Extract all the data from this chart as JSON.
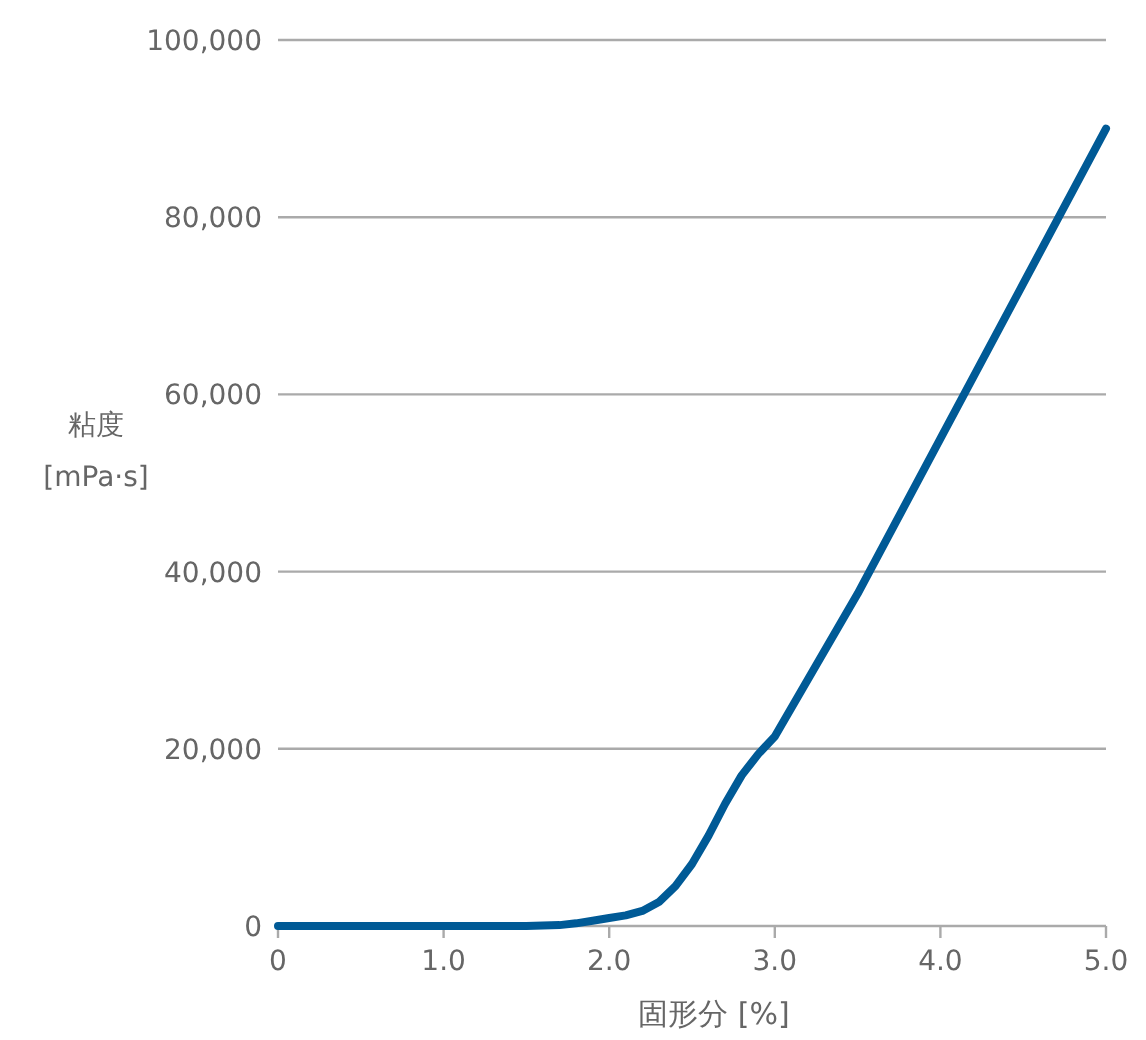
{
  "chart_data": {
    "type": "line",
    "xlabel": "固形分 [%]",
    "ylabel": "粘度[mPa·s]",
    "x": [
      0,
      0.5,
      1.0,
      1.5,
      1.7,
      1.8,
      1.9,
      2.0,
      2.1,
      2.2,
      2.3,
      2.4,
      2.5,
      2.6,
      2.7,
      2.8,
      2.9,
      3.0,
      3.5,
      4.0,
      4.5,
      5.0
    ],
    "series": [
      {
        "color": "#005a96",
        "values": [
          0,
          0,
          0,
          0,
          100,
          300,
          600,
          900,
          1200,
          1700,
          2700,
          4500,
          7000,
          10200,
          13800,
          17000,
          19400,
          21400,
          37500,
          55000,
          72500,
          90000
        ]
      }
    ],
    "xlim": [
      0,
      5
    ],
    "ylim": [
      0,
      100000
    ],
    "xticks": [
      0,
      {
        "value": 1,
        "label": "1.0"
      },
      {
        "value": 2,
        "label": "2.0"
      },
      {
        "value": 3,
        "label": "3.0"
      },
      {
        "value": 4,
        "label": "4.0"
      },
      {
        "value": 5,
        "label": "5.0"
      }
    ],
    "yticks": [
      0,
      {
        "value": 20000,
        "label": "20,000"
      },
      {
        "value": 40000,
        "label": "40,000"
      },
      {
        "value": 60000,
        "label": "60,000"
      },
      {
        "value": 80000,
        "label": "80,000"
      },
      {
        "value": 100000,
        "label": "100,000"
      }
    ],
    "grid": "y",
    "marker": "none",
    "line_style": "solid"
  }
}
